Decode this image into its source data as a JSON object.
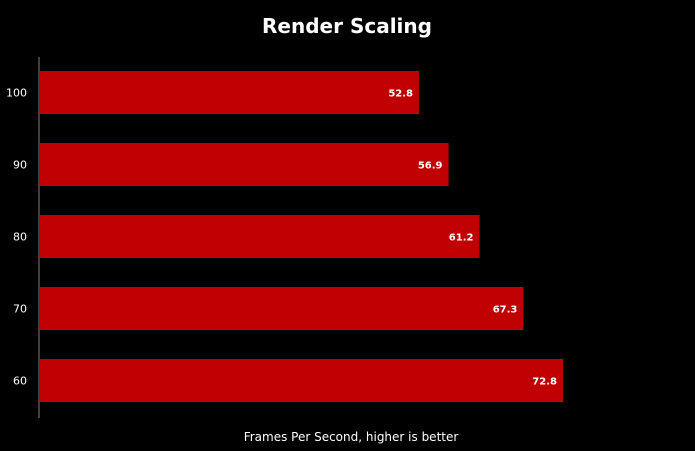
{
  "chart_data": {
    "type": "bar",
    "orientation": "horizontal",
    "title": "Render Scaling",
    "xlabel": "Frames Per Second, higher is better",
    "ylabel": "",
    "categories": [
      "100",
      "90",
      "80",
      "70",
      "60"
    ],
    "values": [
      52.8,
      56.9,
      61.2,
      67.3,
      72.8
    ],
    "data_labels": [
      "52.8",
      "56.9",
      "61.2",
      "67.3",
      "72.8"
    ],
    "xlim": [
      0,
      81
    ],
    "grid": false,
    "legend": "none",
    "colors": {
      "background": "#000000",
      "bar": "#c00000",
      "text": "#ffffff",
      "axis": "#808080"
    }
  }
}
